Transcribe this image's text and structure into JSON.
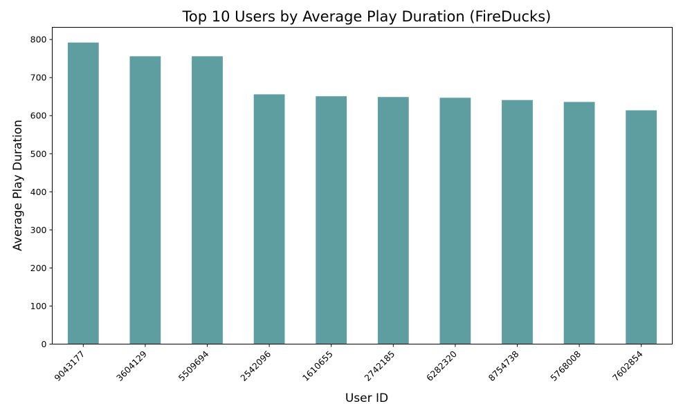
{
  "chart_data": {
    "type": "bar",
    "title": "Top 10 Users by Average Play Duration (FireDucks)",
    "xlabel": "User ID",
    "ylabel": "Average Play Duration",
    "categories": [
      "9043177",
      "3604129",
      "5509694",
      "2542096",
      "1610655",
      "2742185",
      "6282320",
      "8754738",
      "5768008",
      "7602854"
    ],
    "values": [
      792,
      756,
      756,
      656,
      651,
      649,
      647,
      641,
      636,
      614
    ],
    "ylim": [
      0,
      832
    ],
    "yticks": [
      0,
      100,
      200,
      300,
      400,
      500,
      600,
      700,
      800
    ],
    "bar_color": "#5f9ea0",
    "grid": false,
    "legend": "none"
  }
}
